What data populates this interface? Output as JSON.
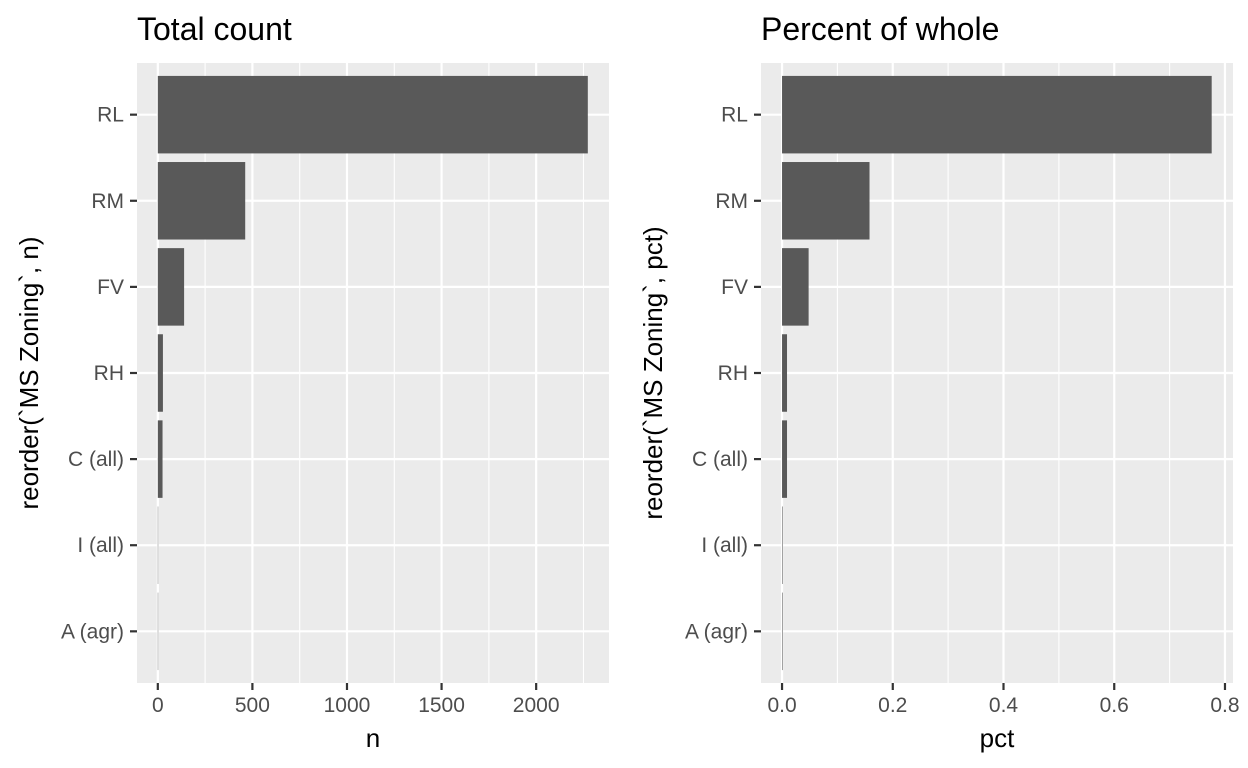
{
  "chart_data": [
    {
      "type": "bar",
      "orientation": "horizontal",
      "title": "Total count",
      "xlabel": "n",
      "ylabel": "reorder(`MS Zoning`, n)",
      "categories": [
        "RL",
        "RM",
        "FV",
        "RH",
        "C (all)",
        "I (all)",
        "A (agr)"
      ],
      "values": [
        2273,
        462,
        139,
        27,
        25,
        2,
        2
      ],
      "xlim": [
        -110,
        2385
      ],
      "xticks": [
        0,
        500,
        1000,
        1500,
        2000
      ],
      "xtick_labels": [
        "0",
        "500",
        "1000",
        "1500",
        "2000"
      ],
      "grid": true
    },
    {
      "type": "bar",
      "orientation": "horizontal",
      "title": "Percent of whole",
      "xlabel": "pct",
      "ylabel": "reorder(`MS Zoning`, pct)",
      "categories": [
        "RL",
        "RM",
        "FV",
        "RH",
        "C (all)",
        "I (all)",
        "A (agr)"
      ],
      "values": [
        0.776,
        0.158,
        0.048,
        0.009,
        0.009,
        0.001,
        0.001
      ],
      "xlim": [
        -0.038,
        0.8145
      ],
      "xticks": [
        0,
        0.2,
        0.4,
        0.6,
        0.8
      ],
      "xtick_labels": [
        "0.0",
        "0.2",
        "0.4",
        "0.6",
        "0.8"
      ],
      "grid": true
    }
  ]
}
